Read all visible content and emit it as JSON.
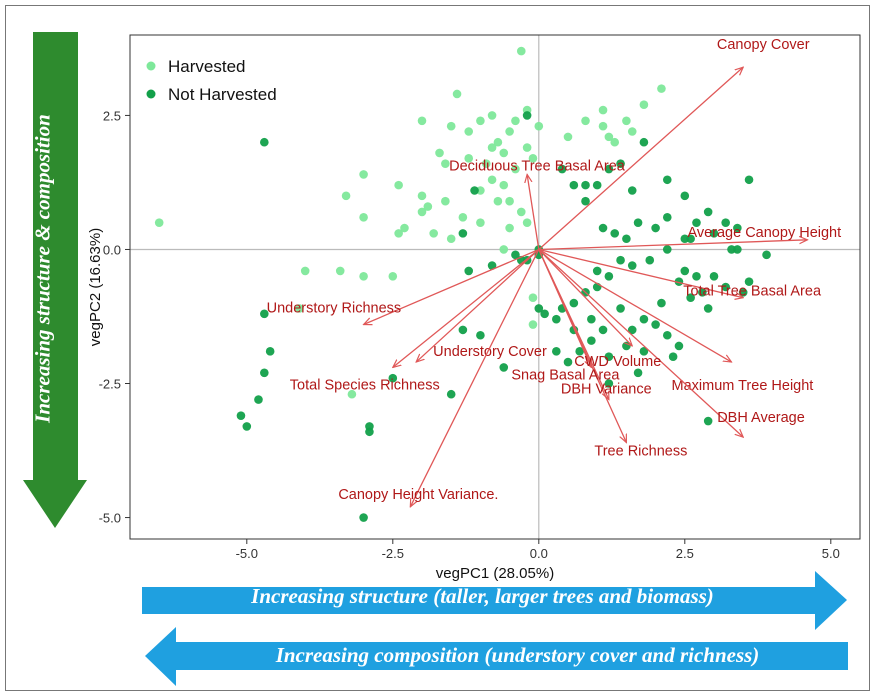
{
  "colors": {
    "harvested": "#7ee89a",
    "not_harvested": "#12a04a",
    "loading_arrow": "#e05858",
    "loading_text": "#b01818",
    "green_arrow": "#2e8b2e",
    "blue_arrow": "#1fa0e0"
  },
  "annotations": {
    "vertical": "Increasing structure & composition",
    "structure": "Increasing structure (taller, larger trees and biomass)",
    "composition": "Increasing composition (understory cover and richness)"
  },
  "chart_data": {
    "type": "scatter",
    "xlabel": "vegPC1 (28.05%)",
    "ylabel": "vegPC2 (16.63%)",
    "xlim": [
      -7.0,
      5.5
    ],
    "ylim": [
      -5.4,
      4.0
    ],
    "xticks": [
      -5.0,
      -2.5,
      0.0,
      2.5,
      5.0
    ],
    "xtick_labels": [
      "-5.0",
      "-2.5",
      "0.0",
      "2.5",
      "5.0"
    ],
    "yticks": [
      2.5,
      0.0,
      -2.5,
      -5.0
    ],
    "ytick_labels": [
      "2.5",
      "0.0",
      "-2.5",
      "-5.0"
    ],
    "grid": false,
    "reference_lines": [
      0,
      0
    ],
    "legend_position": "top-left",
    "series": [
      {
        "name": "Harvested",
        "points": [
          [
            -6.5,
            0.5
          ],
          [
            -3.0,
            1.4
          ],
          [
            -3.3,
            1.0
          ],
          [
            -3.4,
            -0.4
          ],
          [
            -4.0,
            -0.4
          ],
          [
            -4.1,
            -1.1
          ],
          [
            -3.0,
            0.6
          ],
          [
            -3.0,
            -0.5
          ],
          [
            -3.2,
            -2.7
          ],
          [
            -2.4,
            1.2
          ],
          [
            -2.0,
            0.7
          ],
          [
            -2.3,
            0.4
          ],
          [
            -2.4,
            0.3
          ],
          [
            -2.5,
            -0.5
          ],
          [
            -1.9,
            0.8
          ],
          [
            -2.0,
            1.0
          ],
          [
            -1.6,
            0.9
          ],
          [
            -1.8,
            0.3
          ],
          [
            -1.5,
            0.2
          ],
          [
            -1.3,
            0.6
          ],
          [
            -1.0,
            0.5
          ],
          [
            -1.0,
            1.1
          ],
          [
            -0.8,
            1.3
          ],
          [
            -0.6,
            1.2
          ],
          [
            -0.5,
            0.9
          ],
          [
            -0.7,
            0.9
          ],
          [
            -0.3,
            0.7
          ],
          [
            -1.5,
            2.3
          ],
          [
            -1.2,
            2.2
          ],
          [
            -1.0,
            2.4
          ],
          [
            -0.8,
            2.5
          ],
          [
            -0.4,
            2.4
          ],
          [
            -0.2,
            2.6
          ],
          [
            0.0,
            2.3
          ],
          [
            -0.7,
            2.0
          ],
          [
            -0.5,
            2.2
          ],
          [
            -0.3,
            3.7
          ],
          [
            -1.4,
            2.9
          ],
          [
            -2.0,
            2.4
          ],
          [
            -1.7,
            1.8
          ],
          [
            -1.6,
            1.6
          ],
          [
            -1.2,
            1.7
          ],
          [
            -0.8,
            1.9
          ],
          [
            -0.6,
            1.8
          ],
          [
            -0.9,
            1.6
          ],
          [
            -0.4,
            1.5
          ],
          [
            -0.2,
            1.9
          ],
          [
            -0.1,
            1.7
          ],
          [
            0.5,
            2.1
          ],
          [
            0.8,
            2.4
          ],
          [
            1.1,
            2.6
          ],
          [
            1.3,
            2.0
          ],
          [
            1.5,
            2.4
          ],
          [
            1.6,
            2.2
          ],
          [
            1.2,
            2.1
          ],
          [
            1.8,
            2.7
          ],
          [
            1.1,
            2.3
          ],
          [
            2.1,
            3.0
          ],
          [
            -0.5,
            0.4
          ],
          [
            -0.2,
            0.5
          ],
          [
            -0.6,
            0.0
          ],
          [
            -0.1,
            -0.9
          ],
          [
            -0.1,
            -1.4
          ]
        ]
      },
      {
        "name": "Not Harvested",
        "points": [
          [
            -4.7,
            2.0
          ],
          [
            -4.7,
            -1.2
          ],
          [
            -4.6,
            -1.9
          ],
          [
            -4.7,
            -2.3
          ],
          [
            -4.8,
            -2.8
          ],
          [
            -5.0,
            -3.3
          ],
          [
            -5.1,
            -3.1
          ],
          [
            -3.0,
            -5.0
          ],
          [
            -2.9,
            -3.3
          ],
          [
            -2.9,
            -3.4
          ],
          [
            -2.5,
            -2.4
          ],
          [
            -1.5,
            -2.7
          ],
          [
            -1.3,
            -1.5
          ],
          [
            -1.0,
            -1.6
          ],
          [
            -0.6,
            -2.2
          ],
          [
            -1.3,
            0.3
          ],
          [
            -1.2,
            -0.4
          ],
          [
            -0.8,
            -0.3
          ],
          [
            -0.4,
            -0.1
          ],
          [
            -1.1,
            1.1
          ],
          [
            -0.2,
            -0.2
          ],
          [
            0.0,
            -0.1
          ],
          [
            -0.3,
            -0.2
          ],
          [
            0.0,
            0.0
          ],
          [
            -0.2,
            2.5
          ],
          [
            0.4,
            1.5
          ],
          [
            0.6,
            1.2
          ],
          [
            0.8,
            1.2
          ],
          [
            1.0,
            1.2
          ],
          [
            1.2,
            1.5
          ],
          [
            1.4,
            1.6
          ],
          [
            1.8,
            2.0
          ],
          [
            2.2,
            1.3
          ],
          [
            2.5,
            1.0
          ],
          [
            2.7,
            0.5
          ],
          [
            2.9,
            0.7
          ],
          [
            3.2,
            0.5
          ],
          [
            3.4,
            0.4
          ],
          [
            3.6,
            1.3
          ],
          [
            3.0,
            0.3
          ],
          [
            3.4,
            0.0
          ],
          [
            3.9,
            -0.1
          ],
          [
            3.6,
            -0.6
          ],
          [
            3.0,
            -0.5
          ],
          [
            2.7,
            -0.5
          ],
          [
            2.5,
            -0.4
          ],
          [
            2.8,
            -0.8
          ],
          [
            3.2,
            -0.7
          ],
          [
            3.5,
            -0.8
          ],
          [
            2.9,
            -1.1
          ],
          [
            2.6,
            -0.9
          ],
          [
            2.4,
            -0.6
          ],
          [
            1.1,
            0.4
          ],
          [
            1.3,
            0.3
          ],
          [
            1.5,
            0.2
          ],
          [
            1.7,
            0.5
          ],
          [
            2.0,
            0.4
          ],
          [
            2.2,
            0.0
          ],
          [
            1.9,
            -0.2
          ],
          [
            1.6,
            -0.3
          ],
          [
            1.4,
            -0.2
          ],
          [
            1.2,
            -0.5
          ],
          [
            1.0,
            -0.4
          ],
          [
            0.8,
            -0.8
          ],
          [
            0.6,
            -1.0
          ],
          [
            0.4,
            -1.1
          ],
          [
            0.3,
            -1.3
          ],
          [
            0.6,
            -1.5
          ],
          [
            0.9,
            -1.3
          ],
          [
            1.1,
            -1.5
          ],
          [
            1.4,
            -1.1
          ],
          [
            1.6,
            -1.5
          ],
          [
            1.8,
            -1.3
          ],
          [
            2.0,
            -1.4
          ],
          [
            2.2,
            -1.6
          ],
          [
            2.4,
            -1.8
          ],
          [
            1.8,
            -1.9
          ],
          [
            1.5,
            -1.8
          ],
          [
            1.2,
            -2.0
          ],
          [
            0.9,
            -1.7
          ],
          [
            0.7,
            -1.9
          ],
          [
            0.5,
            -2.1
          ],
          [
            0.3,
            -1.9
          ],
          [
            0.1,
            -1.2
          ],
          [
            0.0,
            -1.1
          ],
          [
            1.0,
            -0.7
          ],
          [
            0.8,
            0.9
          ],
          [
            1.6,
            1.1
          ],
          [
            2.2,
            0.6
          ],
          [
            2.5,
            0.2
          ],
          [
            2.9,
            -3.2
          ],
          [
            3.3,
            0.0
          ],
          [
            2.1,
            -1.0
          ],
          [
            2.3,
            -2.0
          ],
          [
            1.7,
            -2.3
          ],
          [
            1.2,
            -2.5
          ],
          [
            2.6,
            0.2
          ]
        ]
      }
    ],
    "loadings": [
      {
        "label": "Canopy Cover",
        "x": 3.5,
        "y": 3.4
      },
      {
        "label": "Deciduous Tree Basal Area",
        "x": -0.2,
        "y": 1.4
      },
      {
        "label": "Average Canopy Height",
        "x": 4.6,
        "y": 0.18
      },
      {
        "label": "Total Tree Basal Area",
        "x": 3.5,
        "y": -0.9
      },
      {
        "label": "Maximum Tree Height",
        "x": 3.3,
        "y": -2.1
      },
      {
        "label": "DBH Average",
        "x": 3.5,
        "y": -3.5
      },
      {
        "label": "Tree Richness",
        "x": 1.5,
        "y": -3.6
      },
      {
        "label": "DBH Variance",
        "x": 1.2,
        "y": -2.8
      },
      {
        "label": "Snag Basal Area",
        "x": 0.9,
        "y": -2.2
      },
      {
        "label": "CWD Volume",
        "x": 1.6,
        "y": -1.8
      },
      {
        "label": "Understory Richness",
        "x": -3.0,
        "y": -1.4
      },
      {
        "label": "Total Species Richness",
        "x": -2.5,
        "y": -2.2
      },
      {
        "label": "Understory Cover",
        "x": -2.1,
        "y": -2.1
      },
      {
        "label": "Canopy Height Variance.",
        "x": -2.2,
        "y": -4.8
      }
    ]
  }
}
